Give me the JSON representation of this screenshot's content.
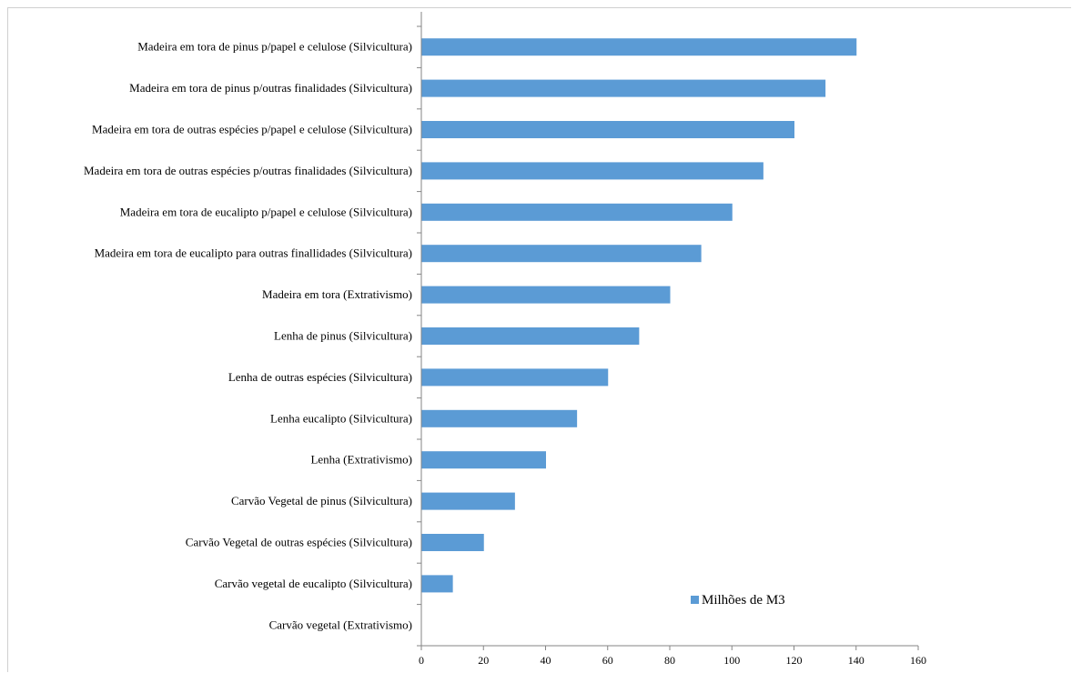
{
  "chart_data": {
    "type": "bar",
    "orientation": "horizontal",
    "categories": [
      "Madeira em tora de pinus p/papel e celulose (Silvicultura)",
      "Madeira em tora de pinus p/outras finalidades (Silvicultura)",
      "Madeira em tora de outras espécies p/papel e celulose (Silvicultura)",
      "Madeira em tora de outras espécies p/outras finalidades (Silvicultura)",
      "Madeira em tora de eucalipto p/papel e celulose (Silvicultura)",
      "Madeira em tora de eucalipto para outras finallidades (Silvicultura)",
      "Madeira em tora (Extrativismo)",
      "Lenha de pinus (Silvicultura)",
      "Lenha de outras espécies (Silvicultura)",
      "Lenha eucalipto (Silvicultura)",
      "Lenha (Extrativismo)",
      "Carvão Vegetal de pinus (Silvicultura)",
      "Carvão Vegetal de outras espécies (Silvicultura)",
      "Carvão vegetal de eucalipto (Silvicultura)",
      "Carvão vegetal (Extrativismo)"
    ],
    "series": [
      {
        "name": "Milhões de M3",
        "color": "#5b9bd5",
        "values": [
          140,
          130,
          120,
          110,
          100,
          90,
          80,
          70,
          60,
          50,
          40,
          30,
          20,
          10,
          0
        ]
      }
    ],
    "xlim": [
      0,
      160
    ],
    "xticks": [
      "0",
      "20",
      "40",
      "60",
      "80",
      "100",
      "120",
      "140",
      "160"
    ],
    "title": "",
    "xlabel": "",
    "ylabel": "",
    "grid": false,
    "legend_position": "bottom-right"
  }
}
